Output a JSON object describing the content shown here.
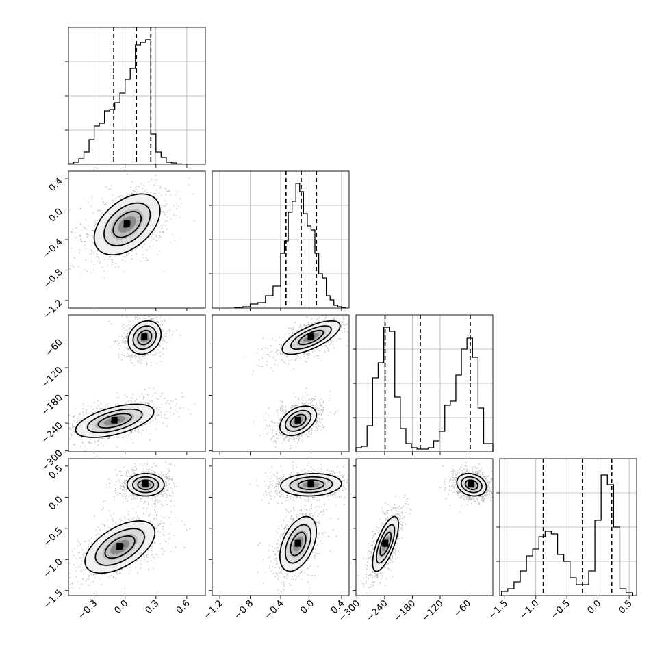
{
  "chart_data": {
    "type": "corner",
    "title": "",
    "parameters": [
      {
        "range": [
          -0.55,
          0.78
        ],
        "ticks": [
          -0.3,
          0.0,
          0.3,
          0.6
        ],
        "tick_labels": [
          "−0.3",
          "0.0",
          "0.3",
          "0.6"
        ],
        "quantiles": [
          -0.11,
          0.11,
          0.25
        ],
        "hist": [
          [
            -0.55,
            -0.5,
            0.004
          ],
          [
            -0.5,
            -0.45,
            0.015
          ],
          [
            -0.45,
            -0.4,
            0.04
          ],
          [
            -0.4,
            -0.35,
            0.09
          ],
          [
            -0.35,
            -0.3,
            0.18
          ],
          [
            -0.3,
            -0.25,
            0.28
          ],
          [
            -0.25,
            -0.2,
            0.3
          ],
          [
            -0.2,
            -0.15,
            0.39
          ],
          [
            -0.15,
            -0.1,
            0.4
          ],
          [
            -0.1,
            -0.05,
            0.45
          ],
          [
            -0.05,
            0.0,
            0.52
          ],
          [
            0.0,
            0.05,
            0.62
          ],
          [
            0.05,
            0.1,
            0.7
          ],
          [
            0.1,
            0.15,
            0.87
          ],
          [
            0.15,
            0.2,
            0.89
          ],
          [
            0.2,
            0.25,
            0.91
          ],
          [
            0.25,
            0.3,
            0.22
          ],
          [
            0.3,
            0.35,
            0.09
          ],
          [
            0.35,
            0.4,
            0.05
          ],
          [
            0.4,
            0.45,
            0.015
          ],
          [
            0.45,
            0.5,
            0.01
          ],
          [
            0.5,
            0.55,
            0.003
          ]
        ]
      },
      {
        "range": [
          -1.3,
          0.5
        ],
        "ticks": [
          -1.2,
          -0.8,
          -0.4,
          0.0,
          0.4
        ],
        "tick_labels": [
          "−1.2",
          "−0.8",
          "−0.4",
          "0.0",
          "0.4"
        ],
        "quantiles": [
          -0.33,
          -0.13,
          0.07
        ],
        "hist": [
          [
            -1.0,
            -0.95,
            0.002
          ],
          [
            -0.95,
            -0.9,
            0.006
          ],
          [
            -0.9,
            -0.85,
            0.01
          ],
          [
            -0.85,
            -0.8,
            0.01
          ],
          [
            -0.8,
            -0.7,
            0.03
          ],
          [
            -0.7,
            -0.6,
            0.04
          ],
          [
            -0.6,
            -0.5,
            0.09
          ],
          [
            -0.5,
            -0.4,
            0.16
          ],
          [
            -0.4,
            -0.35,
            0.4
          ],
          [
            -0.35,
            -0.3,
            0.49
          ],
          [
            -0.3,
            -0.25,
            0.7
          ],
          [
            -0.25,
            -0.2,
            0.78
          ],
          [
            -0.2,
            -0.15,
            0.91
          ],
          [
            -0.15,
            -0.1,
            0.85
          ],
          [
            -0.1,
            -0.05,
            0.69
          ],
          [
            -0.05,
            0.0,
            0.6
          ],
          [
            0.0,
            0.05,
            0.57
          ],
          [
            0.05,
            0.1,
            0.4
          ],
          [
            0.1,
            0.15,
            0.25
          ],
          [
            0.15,
            0.2,
            0.22
          ],
          [
            0.2,
            0.25,
            0.09
          ],
          [
            0.25,
            0.3,
            0.06
          ],
          [
            0.3,
            0.35,
            0.02
          ],
          [
            0.35,
            0.4,
            0.01
          ],
          [
            0.4,
            0.45,
            0.003
          ]
        ]
      },
      {
        "range": [
          -302,
          -6
        ],
        "ticks": [
          -300,
          -240,
          -180,
          -120,
          -60
        ],
        "tick_labels": [
          "−300",
          "−240",
          "−180",
          "−120",
          "−60"
        ],
        "quantiles": [
          -239,
          -163,
          -55
        ],
        "hist": [
          [
            -302,
            -290,
            0.03
          ],
          [
            -290,
            -278,
            0.04
          ],
          [
            -278,
            -266,
            0.19
          ],
          [
            -266,
            -254,
            0.54
          ],
          [
            -254,
            -242,
            0.65
          ],
          [
            -242,
            -230,
            0.91
          ],
          [
            -230,
            -218,
            0.88
          ],
          [
            -218,
            -206,
            0.4
          ],
          [
            -206,
            -194,
            0.17
          ],
          [
            -194,
            -182,
            0.06
          ],
          [
            -182,
            -170,
            0.03
          ],
          [
            -170,
            -158,
            0.02
          ],
          [
            -158,
            -146,
            0.02
          ],
          [
            -146,
            -134,
            0.03
          ],
          [
            -134,
            -122,
            0.08
          ],
          [
            -122,
            -110,
            0.15
          ],
          [
            -110,
            -98,
            0.34
          ],
          [
            -98,
            -86,
            0.37
          ],
          [
            -86,
            -74,
            0.56
          ],
          [
            -74,
            -62,
            0.75
          ],
          [
            -62,
            -50,
            0.83
          ],
          [
            -50,
            -38,
            0.69
          ],
          [
            -38,
            -26,
            0.32
          ],
          [
            -26,
            -14,
            0.06
          ],
          [
            -14,
            -6,
            0.06
          ]
        ]
      },
      {
        "range": [
          -1.58,
          0.62
        ],
        "ticks": [
          -1.5,
          -1.0,
          -0.5,
          0.0,
          0.5
        ],
        "tick_labels": [
          "−1.5",
          "−1.0",
          "−0.5",
          "0.0",
          "0.5"
        ],
        "quantiles": [
          -0.88,
          -0.25,
          0.22
        ],
        "hist": [
          [
            -1.55,
            -1.45,
            0.03
          ],
          [
            -1.45,
            -1.35,
            0.05
          ],
          [
            -1.35,
            -1.25,
            0.1
          ],
          [
            -1.25,
            -1.15,
            0.18
          ],
          [
            -1.15,
            -1.05,
            0.29
          ],
          [
            -1.05,
            -0.95,
            0.34
          ],
          [
            -0.95,
            -0.85,
            0.43
          ],
          [
            -0.85,
            -0.75,
            0.47
          ],
          [
            -0.75,
            -0.65,
            0.45
          ],
          [
            -0.65,
            -0.55,
            0.3
          ],
          [
            -0.55,
            -0.45,
            0.25
          ],
          [
            -0.45,
            -0.35,
            0.13
          ],
          [
            -0.35,
            -0.25,
            0.08
          ],
          [
            -0.25,
            -0.15,
            0.08
          ],
          [
            -0.15,
            -0.05,
            0.18
          ],
          [
            -0.05,
            0.05,
            0.55
          ],
          [
            0.05,
            0.15,
            0.88
          ],
          [
            0.15,
            0.25,
            0.81
          ],
          [
            0.25,
            0.35,
            0.5
          ],
          [
            0.35,
            0.45,
            0.05
          ],
          [
            0.45,
            0.55,
            0.02
          ]
        ]
      }
    ],
    "scatter_panels": [
      {
        "row": 1,
        "col": 0,
        "clusters": [
          {
            "cx": 0.02,
            "cy": -0.2,
            "sx": 0.16,
            "sy": 0.2,
            "rho": 0.45,
            "weight": 1.0,
            "peak": [
              0.2,
              0.0
            ]
          }
        ]
      },
      {
        "row": 2,
        "col": 0,
        "clusters": [
          {
            "cx": 0.19,
            "cy": -55,
            "sx": 0.08,
            "sy": 18,
            "rho": 0.2,
            "weight": 0.85
          },
          {
            "cx": -0.1,
            "cy": -235,
            "sx": 0.19,
            "sy": 18,
            "rho": 0.55,
            "weight": 1.0
          }
        ]
      },
      {
        "row": 2,
        "col": 1,
        "clusters": [
          {
            "cx": 0.0,
            "cy": -55,
            "sx": 0.19,
            "sy": 18,
            "rho": 0.7,
            "weight": 0.85
          },
          {
            "cx": -0.17,
            "cy": -235,
            "sx": 0.12,
            "sy": 16,
            "rho": 0.4,
            "weight": 1.0
          }
        ]
      },
      {
        "row": 3,
        "col": 0,
        "clusters": [
          {
            "cx": 0.2,
            "cy": 0.2,
            "sx": 0.09,
            "sy": 0.09,
            "rho": 0.0,
            "weight": 1.0
          },
          {
            "cx": -0.05,
            "cy": -0.8,
            "sx": 0.17,
            "sy": 0.21,
            "rho": 0.55,
            "weight": 0.9
          }
        ]
      },
      {
        "row": 3,
        "col": 1,
        "clusters": [
          {
            "cx": 0.0,
            "cy": 0.2,
            "sx": 0.2,
            "sy": 0.09,
            "rho": 0.1,
            "weight": 1.0
          },
          {
            "cx": -0.17,
            "cy": -0.75,
            "sx": 0.12,
            "sy": 0.22,
            "rho": 0.45,
            "weight": 0.9
          }
        ]
      },
      {
        "row": 3,
        "col": 2,
        "clusters": [
          {
            "cx": -52,
            "cy": 0.2,
            "sx": 16,
            "sy": 0.09,
            "rho": -0.2,
            "weight": 1.0
          },
          {
            "cx": -238,
            "cy": -0.75,
            "sx": 14,
            "sy": 0.22,
            "rho": 0.7,
            "weight": 0.9
          }
        ]
      }
    ]
  }
}
